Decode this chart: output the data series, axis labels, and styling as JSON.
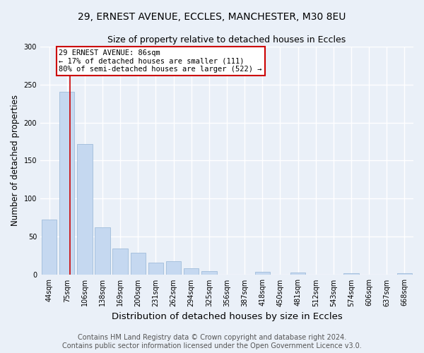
{
  "title1": "29, ERNEST AVENUE, ECCLES, MANCHESTER, M30 8EU",
  "title2": "Size of property relative to detached houses in Eccles",
  "xlabel": "Distribution of detached houses by size in Eccles",
  "ylabel": "Number of detached properties",
  "categories": [
    "44sqm",
    "75sqm",
    "106sqm",
    "138sqm",
    "169sqm",
    "200sqm",
    "231sqm",
    "262sqm",
    "294sqm",
    "325sqm",
    "356sqm",
    "387sqm",
    "418sqm",
    "450sqm",
    "481sqm",
    "512sqm",
    "543sqm",
    "574sqm",
    "606sqm",
    "637sqm",
    "668sqm"
  ],
  "values": [
    73,
    240,
    172,
    62,
    35,
    29,
    16,
    18,
    9,
    5,
    0,
    0,
    4,
    0,
    3,
    0,
    0,
    2,
    0,
    0,
    2
  ],
  "bar_color": "#c5d8f0",
  "bar_edge_color": "#a0bcda",
  "annotation_text_line1": "29 ERNEST AVENUE: 86sqm",
  "annotation_text_line2": "← 17% of detached houses are smaller (111)",
  "annotation_text_line3": "80% of semi-detached houses are larger (522) →",
  "annotation_box_color": "#ffffff",
  "annotation_box_edge_color": "#cc0000",
  "red_line_color": "#cc0000",
  "bg_color": "#eaf0f8",
  "grid_color": "#ffffff",
  "ylim": [
    0,
    300
  ],
  "yticks": [
    0,
    50,
    100,
    150,
    200,
    250,
    300
  ],
  "footer1": "Contains HM Land Registry data © Crown copyright and database right 2024.",
  "footer2": "Contains public sector information licensed under the Open Government Licence v3.0.",
  "footer_fontsize": 7,
  "title1_fontsize": 10,
  "title2_fontsize": 9,
  "xlabel_fontsize": 9.5,
  "ylabel_fontsize": 8.5,
  "tick_fontsize": 7,
  "annot_fontsize": 7.5
}
